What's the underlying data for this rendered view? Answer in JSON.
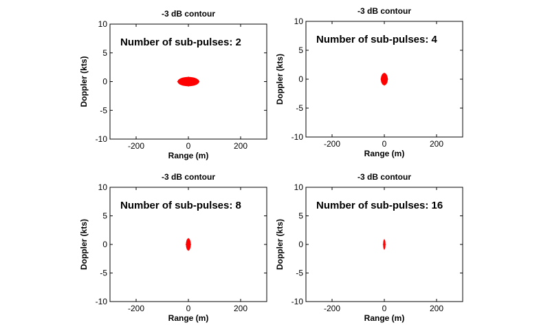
{
  "chart_data": [
    {
      "type": "contour",
      "title": "-3 dB contour",
      "xlabel": "Range (m)",
      "ylabel": "Doppler (kts)",
      "xlim": [
        -300,
        300
      ],
      "ylim": [
        -10,
        10
      ],
      "xticks": [
        -200,
        0,
        200
      ],
      "yticks": [
        10,
        5,
        0,
        -5,
        -10
      ],
      "annotation": "Number of sub-pulses: 2",
      "contour": {
        "color": "#ff0000",
        "x_extent": [
          -40,
          40
        ],
        "y_extent": [
          -0.75,
          0.75
        ]
      }
    },
    {
      "type": "contour",
      "title": "-3 dB contour",
      "xlabel": "Range (m)",
      "ylabel": "Doppler (kts)",
      "xlim": [
        -300,
        300
      ],
      "ylim": [
        -10,
        10
      ],
      "xticks": [
        -200,
        0,
        200
      ],
      "yticks": [
        10,
        5,
        0,
        -5,
        -10
      ],
      "annotation": "Number of sub-pulses: 4",
      "contour": {
        "color": "#ff0000",
        "x_extent": [
          -12,
          12
        ],
        "y_extent": [
          -1.0,
          1.0
        ]
      }
    },
    {
      "type": "contour",
      "title": "-3 dB contour",
      "xlabel": "Range (m)",
      "ylabel": "Doppler (kts)",
      "xlim": [
        -300,
        300
      ],
      "ylim": [
        -10,
        10
      ],
      "xticks": [
        -200,
        0,
        200
      ],
      "yticks": [
        10,
        5,
        0,
        -5,
        -10
      ],
      "annotation": "Number of sub-pulses: 8",
      "contour": {
        "color": "#ff0000",
        "x_extent": [
          -8,
          8
        ],
        "y_extent": [
          -1.0,
          1.0
        ]
      }
    },
    {
      "type": "contour",
      "title": "-3 dB contour",
      "xlabel": "Range (m)",
      "ylabel": "Doppler (kts)",
      "xlim": [
        -300,
        300
      ],
      "ylim": [
        -10,
        10
      ],
      "xticks": [
        -200,
        0,
        200
      ],
      "yticks": [
        10,
        5,
        0,
        -5,
        -10
      ],
      "annotation": "Number of sub-pulses: 16",
      "contour": {
        "color": "#ff0000",
        "x_extent": [
          -3,
          3
        ],
        "y_extent": [
          -0.8,
          0.8
        ]
      }
    }
  ]
}
